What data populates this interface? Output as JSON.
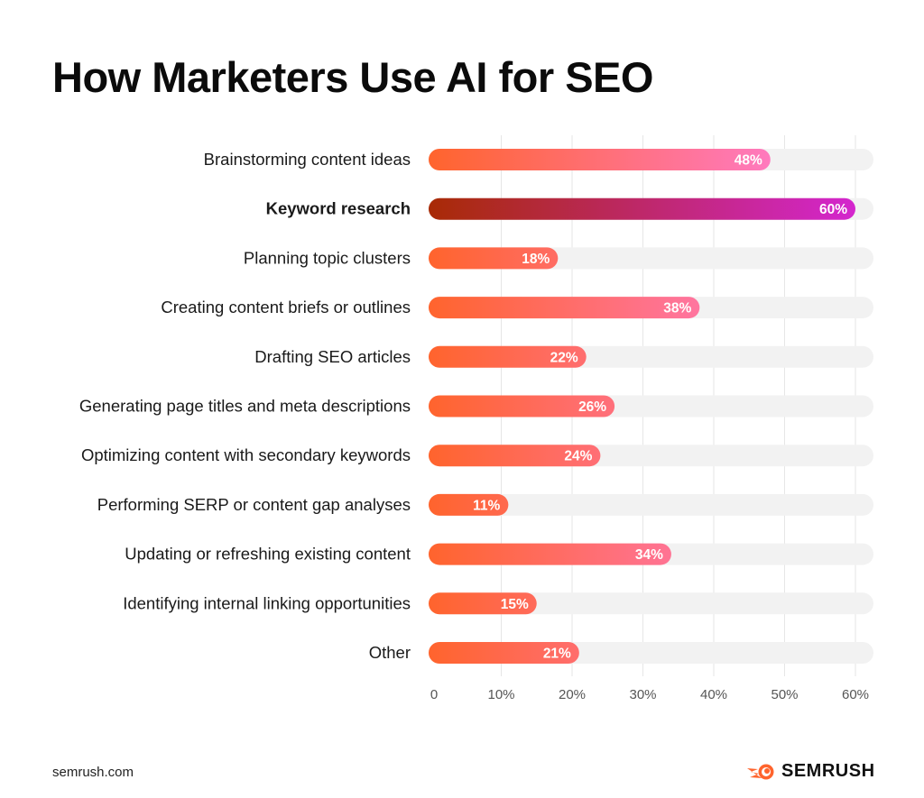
{
  "chart_data": {
    "type": "bar",
    "orientation": "horizontal",
    "title": "How Marketers Use AI for SEO",
    "categories": [
      "Brainstorming content ideas",
      "Keyword research",
      "Planning topic clusters",
      "Creating content briefs or outlines",
      "Drafting SEO articles",
      "Generating page titles and meta descriptions",
      "Optimizing content with secondary keywords",
      "Performing SERP or content gap analyses",
      "Updating or refreshing existing content",
      "Identifying internal linking opportunities",
      "Other"
    ],
    "values": [
      48,
      60,
      18,
      38,
      22,
      26,
      24,
      11,
      34,
      15,
      21
    ],
    "data_labels": [
      "48%",
      "60%",
      "18%",
      "38%",
      "22%",
      "26%",
      "24%",
      "11%",
      "34%",
      "15%",
      "21%"
    ],
    "highlighted_category": "Keyword research",
    "xlim": [
      0,
      62
    ],
    "xticks": [
      0,
      10,
      20,
      30,
      40,
      50,
      60
    ],
    "xtick_labels": [
      "0",
      "10%",
      "20%",
      "30%",
      "40%",
      "50%",
      "60%"
    ],
    "grid": "vertical",
    "colors": {
      "bar_start": "#ff642d",
      "bar_end": "#ff7ac0",
      "highlight_start": "#a82a05",
      "highlight_end": "#d426cf",
      "track": "#f2f2f2",
      "grid": "#e6e6e6"
    }
  },
  "footer": {
    "source": "semrush.com",
    "logo_text": "SEMRUSH",
    "logo_icon": "semrush-fireball-icon"
  }
}
